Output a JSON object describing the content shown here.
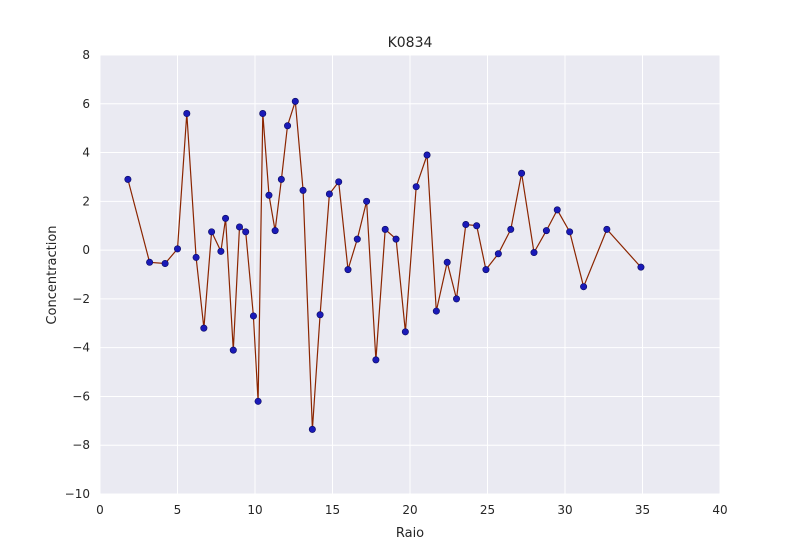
{
  "chart_data": {
    "type": "line",
    "title": "K0834",
    "xlabel": "Raio",
    "ylabel": "Concentraction",
    "xlim": [
      0,
      40
    ],
    "ylim": [
      -10,
      8
    ],
    "x_ticks": [
      0,
      5,
      10,
      15,
      20,
      25,
      30,
      35,
      40
    ],
    "y_ticks": [
      -10,
      -8,
      -6,
      -4,
      -2,
      0,
      2,
      4,
      6,
      8
    ],
    "x_tick_labels": [
      "0",
      "5",
      "10",
      "15",
      "20",
      "25",
      "30",
      "35",
      "40"
    ],
    "y_tick_labels": [
      "−10",
      "−8",
      "−6",
      "−4",
      "−2",
      "0",
      "2",
      "4",
      "6",
      "8"
    ],
    "grid": true,
    "colors": {
      "background": "#eaeaf2",
      "grid": "#ffffff",
      "line": "#8b2500",
      "marker": "#1a1ab8"
    },
    "series": [
      {
        "x": [
          1.8,
          3.2,
          4.2,
          5.0,
          5.6,
          6.2,
          6.7,
          7.2,
          7.8,
          8.1,
          8.6,
          9.0,
          9.4,
          9.9,
          10.2,
          10.5,
          10.9,
          11.3,
          11.7,
          12.1,
          12.6,
          13.1,
          13.7,
          14.2,
          14.8,
          15.4,
          16.0,
          16.6,
          17.2,
          17.8,
          18.4,
          19.1,
          19.7,
          20.4,
          21.1,
          21.7,
          22.4,
          23.0,
          23.6,
          24.3,
          24.9,
          25.7,
          26.5,
          27.2,
          28.0,
          28.8,
          29.5,
          30.3,
          31.2,
          32.7,
          34.9
        ],
        "y": [
          2.9,
          -0.5,
          -0.55,
          0.05,
          5.6,
          -0.3,
          -3.2,
          0.75,
          -0.05,
          1.3,
          -4.1,
          0.95,
          0.75,
          -2.7,
          -6.2,
          5.6,
          2.25,
          0.8,
          2.9,
          5.1,
          6.1,
          2.45,
          -7.35,
          -2.65,
          2.3,
          2.8,
          -0.8,
          0.45,
          2.0,
          -4.5,
          0.85,
          0.45,
          -3.35,
          2.6,
          3.9,
          -2.5,
          -0.5,
          -2.0,
          1.05,
          1.0,
          -0.8,
          -0.15,
          0.85,
          3.15,
          -0.1,
          0.8,
          1.65,
          0.75,
          -1.5,
          0.85,
          -0.7
        ]
      }
    ]
  }
}
